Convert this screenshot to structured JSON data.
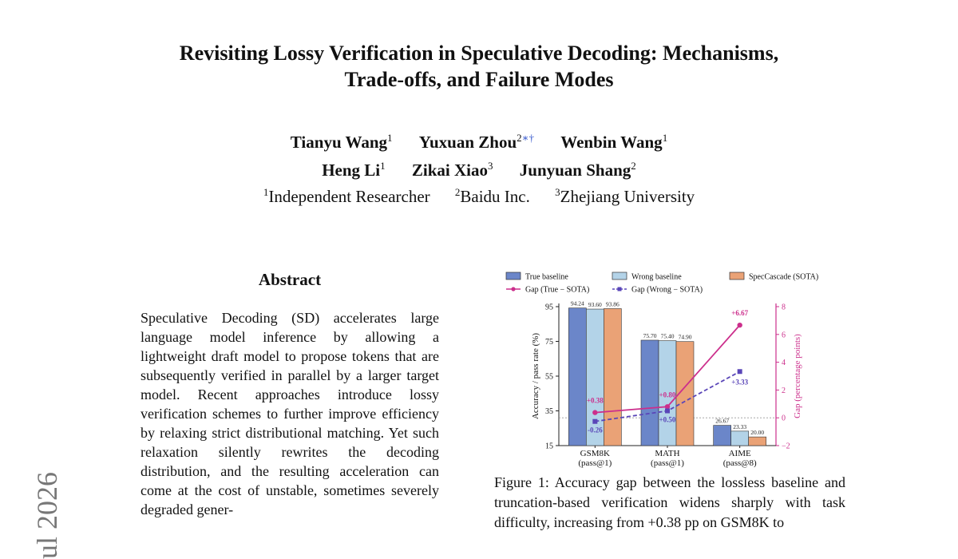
{
  "paper": {
    "title_line1": "Revisiting Lossy Verification in Speculative Decoding: Mechanisms,",
    "title_line2": "Trade-offs, and Failure Modes",
    "authors": [
      {
        "name": "Tianyu Wang",
        "sup": "1",
        "mark": ""
      },
      {
        "name": "Yuxuan Zhou",
        "sup": "2",
        "mark": "∗†"
      },
      {
        "name": "Wenbin Wang",
        "sup": "1",
        "mark": ""
      },
      {
        "name": "Heng Li",
        "sup": "1",
        "mark": ""
      },
      {
        "name": "Zikai Xiao",
        "sup": "3",
        "mark": ""
      },
      {
        "name": "Junyuan Shang",
        "sup": "2",
        "mark": ""
      }
    ],
    "affiliations": [
      {
        "sup": "1",
        "name": "Independent Researcher"
      },
      {
        "sup": "2",
        "name": "Baidu Inc."
      },
      {
        "sup": "3",
        "name": "Zhejiang University"
      }
    ],
    "arxiv_stamp": "ul 2026",
    "abstract_heading": "Abstract",
    "abstract_text": "Speculative Decoding (SD) accelerates large language model inference by allowing a lightweight draft model to propose tokens that are subsequently verified in parallel by a larger target model. Recent approaches introduce lossy verification schemes to further improve efficiency by relaxing strict distributional matching. Yet such relaxation silently rewrites the decoding distribution, and the resulting acceleration can come at the cost of unstable, sometimes severely degraded gener-",
    "caption": "Figure 1: Accuracy gap between the lossless baseline and truncation-based verification widens sharply with task difficulty, increasing from +0.38 pp on GSM8K to"
  },
  "chart_data": {
    "type": "bar",
    "categories": [
      "GSM8K",
      "MATH",
      "AIME"
    ],
    "category_sublabels": [
      "(pass@1)",
      "(pass@1)",
      "(pass@8)"
    ],
    "series": [
      {
        "name": "True baseline",
        "values": [
          94.24,
          75.7,
          26.67
        ],
        "labels": [
          "94.24",
          "75.70",
          "26.67"
        ],
        "color": "#6b86c9"
      },
      {
        "name": "Wrong baseline",
        "values": [
          93.6,
          75.4,
          23.33
        ],
        "labels": [
          "93.60",
          "75.40",
          "23.33"
        ],
        "color": "#b3d3e8"
      },
      {
        "name": "SpecCascade (SOTA)",
        "values": [
          93.86,
          74.9,
          20.0
        ],
        "labels": [
          "93.86",
          "74.90",
          "20.00"
        ],
        "color": "#eaa276"
      }
    ],
    "gap_series": [
      {
        "name": "Gap (True − SOTA)",
        "values": [
          0.38,
          0.8,
          6.67
        ],
        "labels": [
          "+0.38",
          "+0.80",
          "+6.67"
        ],
        "color": "#cc2f8c",
        "style": "solid"
      },
      {
        "name": "Gap (Wrong − SOTA)",
        "values": [
          -0.26,
          0.5,
          3.33
        ],
        "labels": [
          "-0.26",
          "+0.50",
          "+3.33"
        ],
        "color": "#5a46b8",
        "style": "dashed"
      }
    ],
    "ylabel": "Accuracy / pass rate (%)",
    "ylabel_right": "Gap (percentage points)",
    "ylim": [
      15,
      95
    ],
    "yticks": [
      15,
      35,
      55,
      75,
      95
    ],
    "ylim_right": [
      -2,
      8
    ],
    "yticks_right": [
      -2,
      0,
      2,
      4,
      6,
      8
    ],
    "legend_position": "top"
  }
}
